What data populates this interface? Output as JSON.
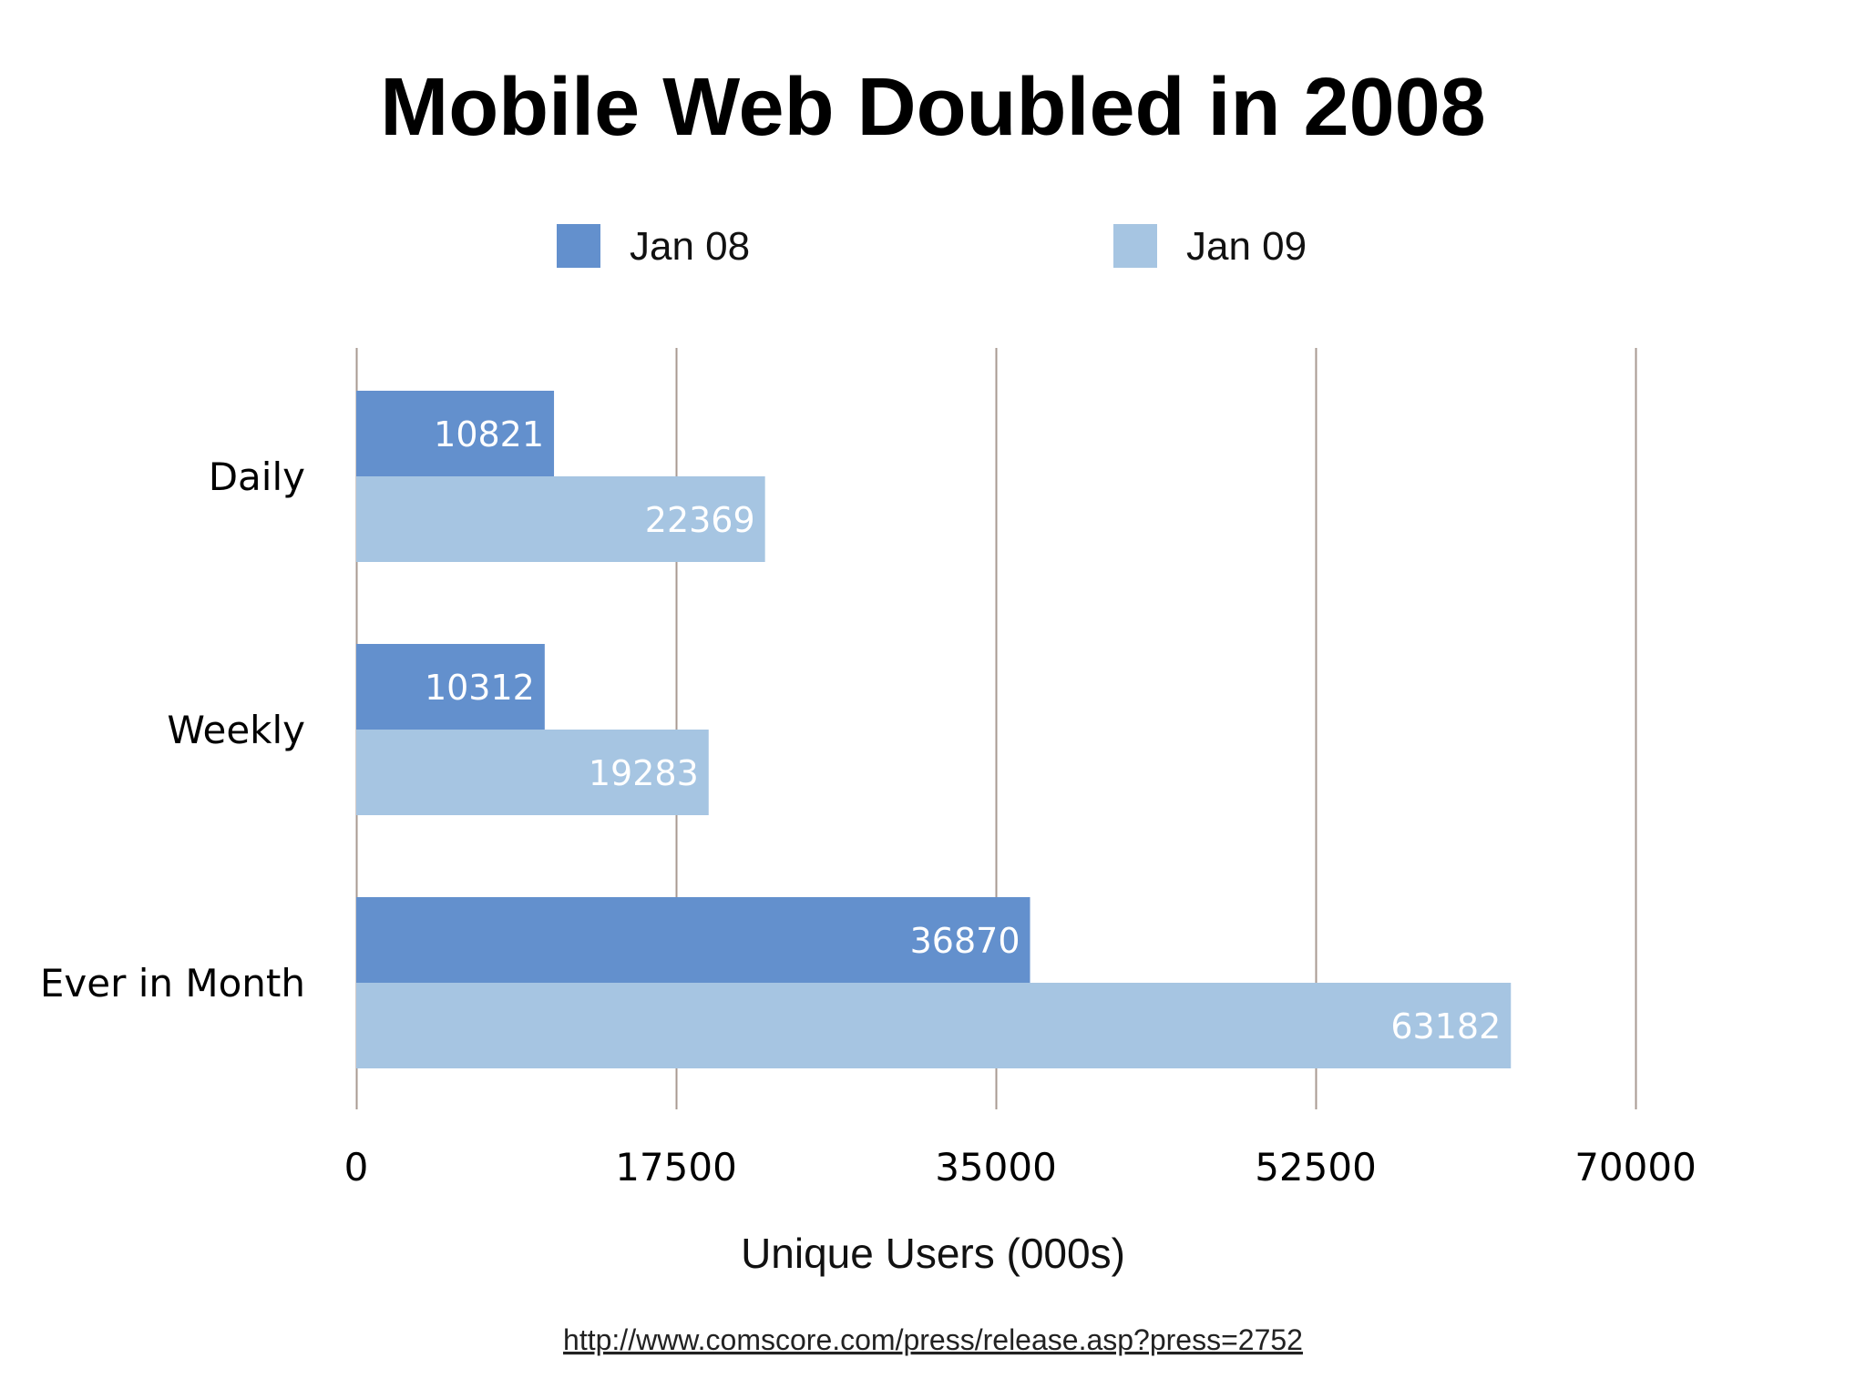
{
  "chart_data": {
    "type": "bar",
    "orientation": "horizontal",
    "title": "Mobile Web Doubled in 2008",
    "xlabel": "Unique Users (000s)",
    "ylabel": "",
    "categories": [
      "Daily",
      "Weekly",
      "Ever in Month"
    ],
    "series": [
      {
        "name": "Jan 08",
        "color": "#6390cd",
        "values": [
          10821,
          10312,
          36870
        ]
      },
      {
        "name": "Jan 09",
        "color": "#a6c5e2",
        "values": [
          22369,
          19283,
          63182
        ]
      }
    ],
    "xlim": [
      0,
      70000
    ],
    "ticks": [
      0,
      17500,
      35000,
      52500,
      70000
    ],
    "tick_labels": [
      "0",
      "17500",
      "35000",
      "52500",
      "70000"
    ],
    "grid": true,
    "legend_position": "top-center",
    "data_labels": true
  },
  "source": {
    "url_text": "http://www.comscore.com/press/release.asp?press=2752"
  }
}
